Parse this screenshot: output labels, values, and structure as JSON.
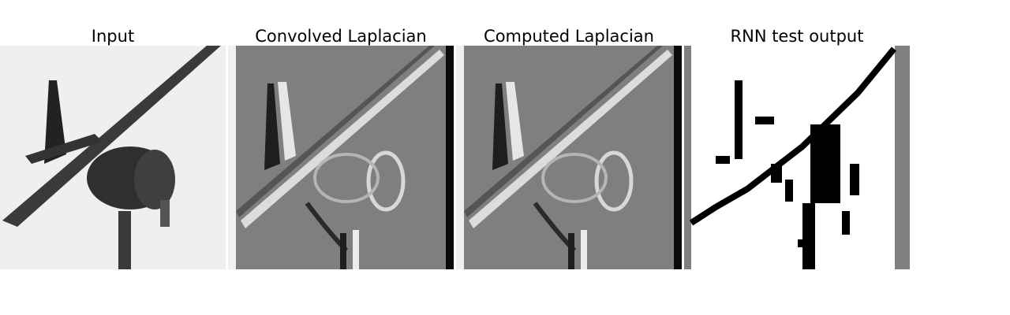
{
  "panels": [
    {
      "title": "Input",
      "kind": "input"
    },
    {
      "title": "Convolved Laplacian",
      "kind": "laplacian"
    },
    {
      "title": "Computed Laplacian",
      "kind": "laplacian"
    },
    {
      "title": "RNN test output",
      "kind": "binary"
    }
  ],
  "colors": {
    "page_background": "#ffffff",
    "input_background": "#efefef",
    "input_plane": "#2e2e2e",
    "laplacian_background": "#7f7f7f",
    "laplacian_dark": "#1e1e1e",
    "laplacian_light": "#e6e6e6",
    "binary_background": "#ffffff",
    "binary_ink": "#000000",
    "binary_border": "#808080"
  }
}
